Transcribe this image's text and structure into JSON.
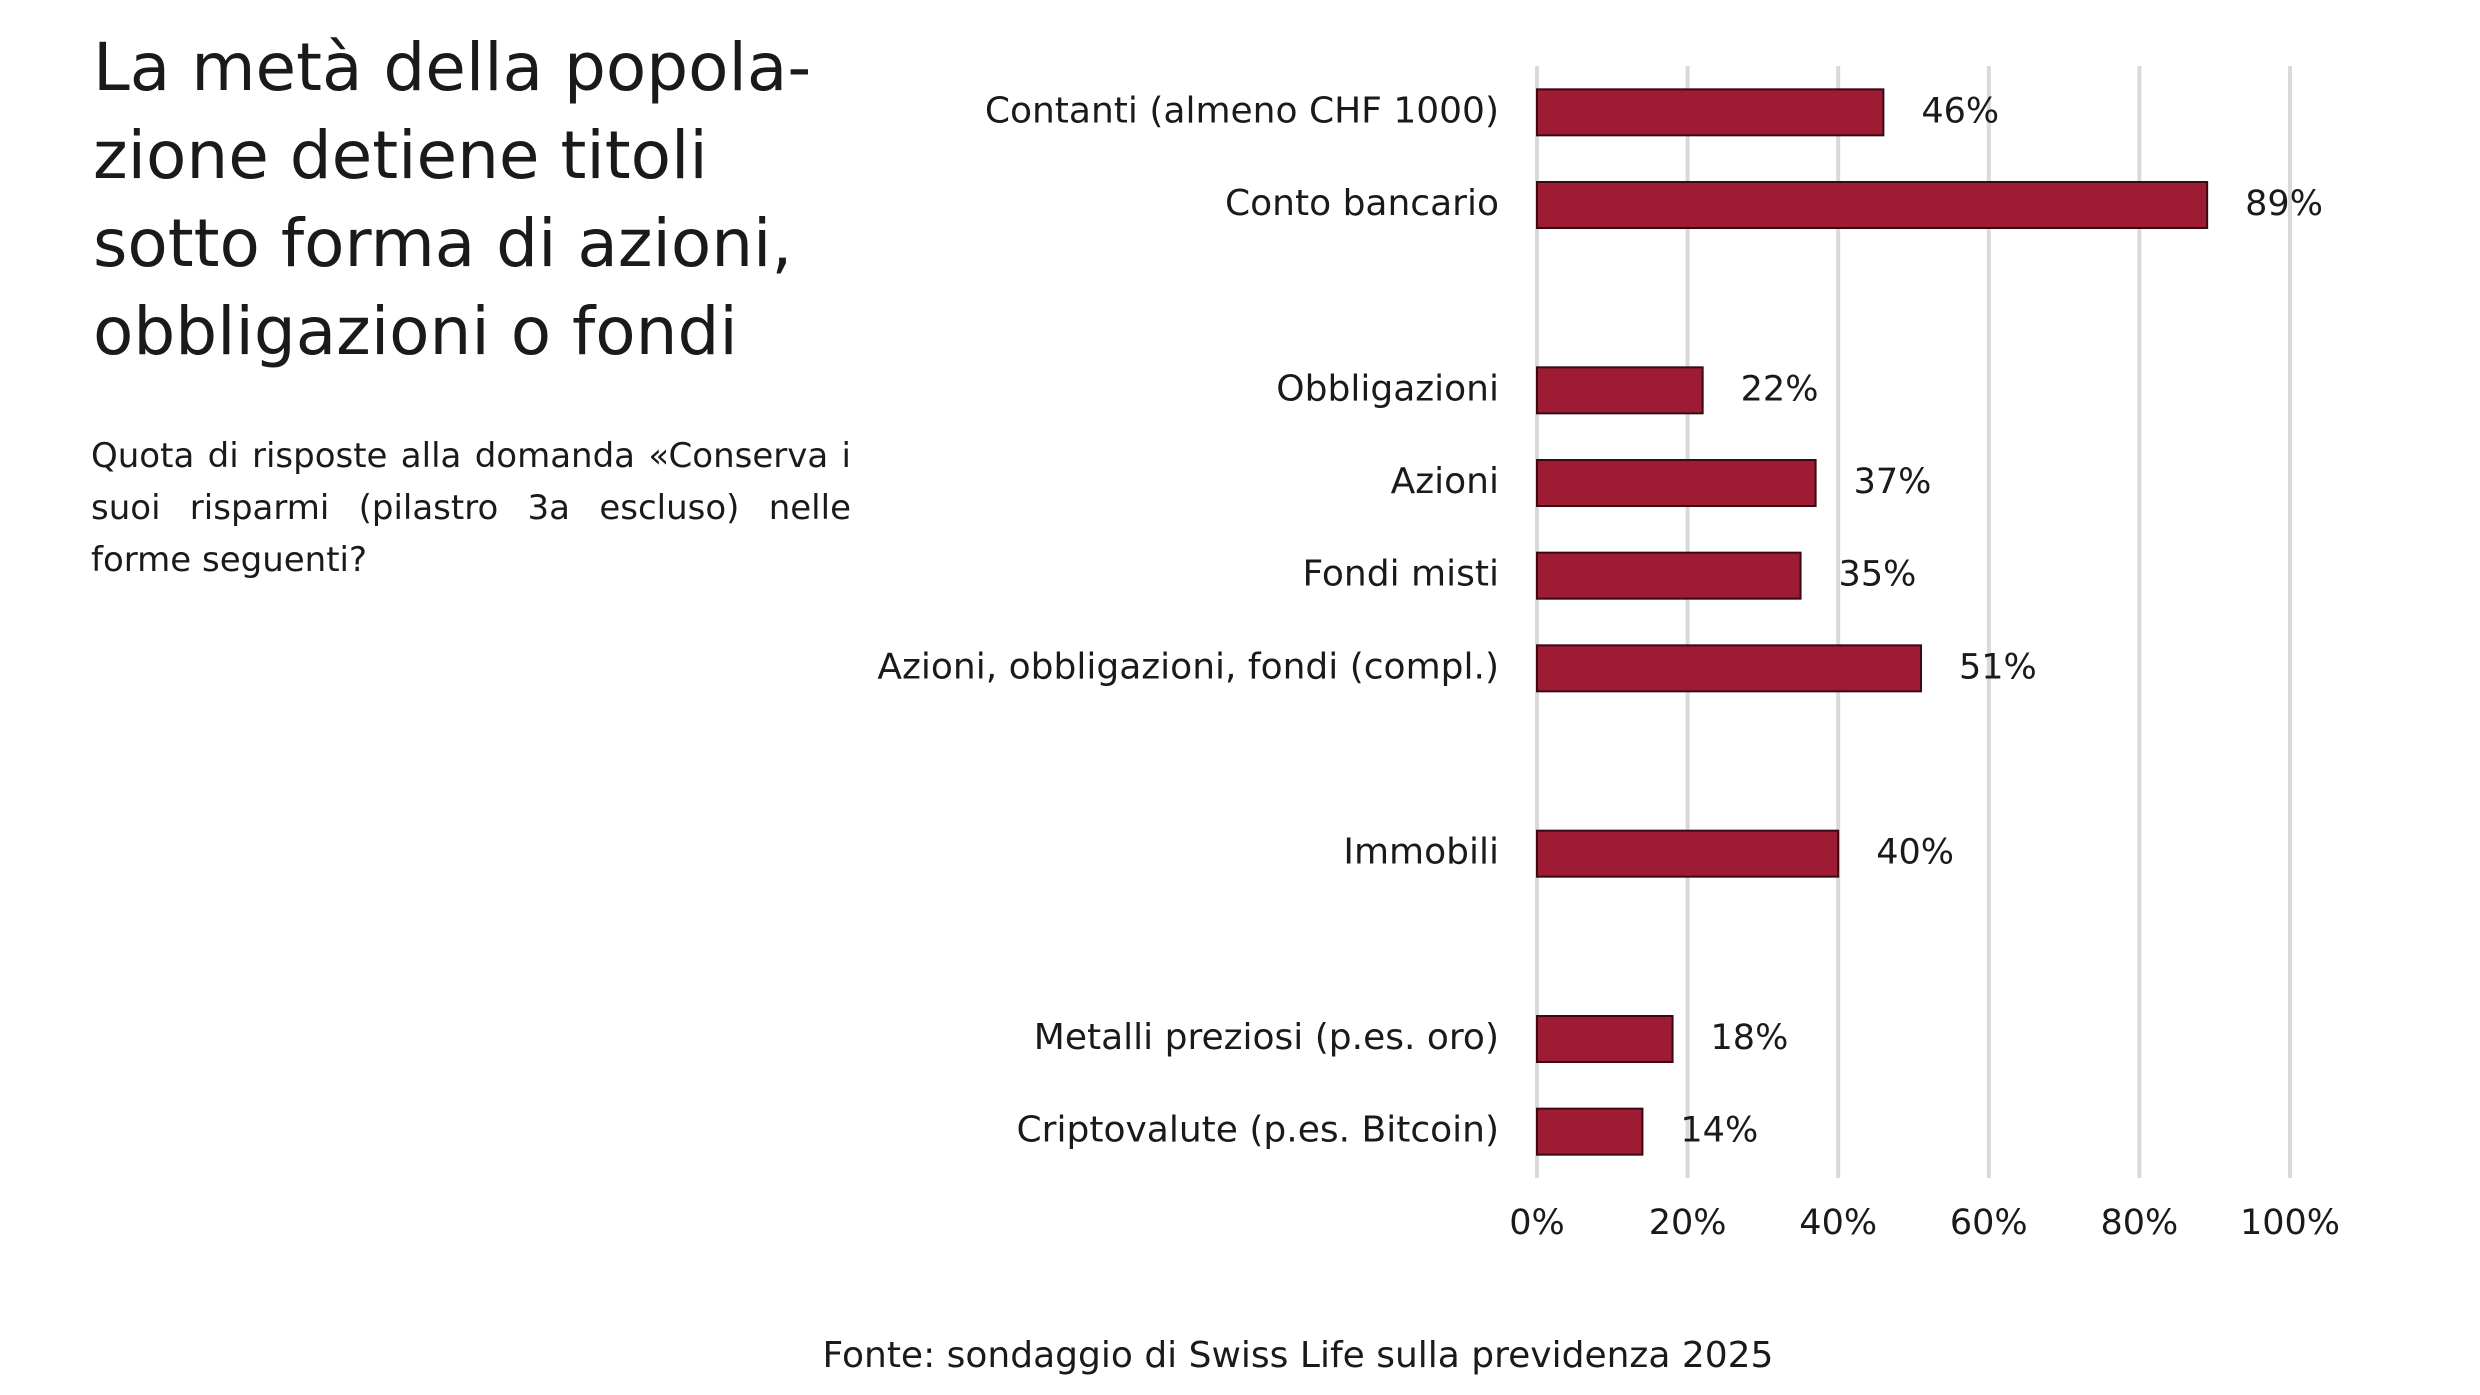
{
  "chart_data": {
    "type": "bar",
    "orientation": "horizontal",
    "title": [
      "La metà della popola-",
      "zione detiene titoli",
      "sotto forma di azioni,",
      "obbligazioni o fondi"
    ],
    "subtitle": "Quota di risposte alla domanda «Conserva i suoi risparmi (pilastro 3a escluso) nelle forme seguenti?",
    "source": "Fonte: sondaggio di Swiss Life sulla previdenza 2025",
    "categories": [
      "Contanti (almeno CHF 1000)",
      "Conto bancario",
      null,
      "Obbligazioni",
      "Azioni",
      "Fondi misti",
      "Azioni, obbligazioni, fondi (compl.)",
      null,
      "Immobili",
      null,
      "Metalli preziosi (p.es. oro)",
      "Criptovalute (p.es. Bitcoin)"
    ],
    "values": [
      46,
      89,
      null,
      22,
      37,
      35,
      51,
      null,
      40,
      null,
      18,
      14
    ],
    "value_labels": [
      "46%",
      "89%",
      null,
      "22%",
      "37%",
      "35%",
      "51%",
      null,
      "40%",
      null,
      "18%",
      "14%"
    ],
    "color": "#9e1b34",
    "xlim": [
      0,
      100
    ],
    "xticks": [
      {
        "value": 0,
        "label": "0%"
      },
      {
        "value": 20,
        "label": "20%"
      },
      {
        "value": 40,
        "label": "40%"
      },
      {
        "value": 60,
        "label": "60%"
      },
      {
        "value": 80,
        "label": "80%"
      },
      {
        "value": 100,
        "label": "100%"
      }
    ],
    "grid": true
  }
}
